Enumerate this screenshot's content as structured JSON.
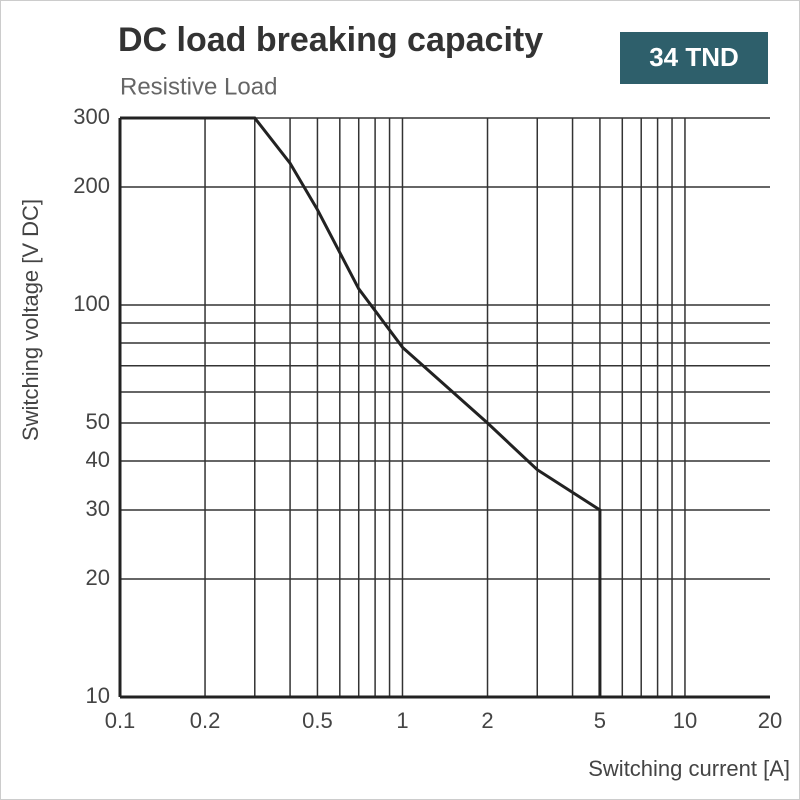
{
  "chart_data": {
    "type": "line",
    "title": "DC load breaking capacity",
    "subtitle": "Resistive Load",
    "badge": "34 TND",
    "x_label": "Switching current [A]",
    "y_label": "Switching voltage [V DC]",
    "log_x": true,
    "log_y": true,
    "grid": true,
    "xlim": [
      0.1,
      20
    ],
    "ylim": [
      10,
      300
    ],
    "xticks": [
      0.1,
      0.2,
      0.5,
      1,
      2,
      5,
      10,
      20
    ],
    "yticks": [
      10,
      20,
      30,
      40,
      50,
      100,
      200,
      300
    ],
    "xgrid": [
      0.1,
      0.2,
      0.3,
      0.4,
      0.5,
      0.6,
      0.7,
      0.8,
      0.9,
      1,
      2,
      3,
      4,
      5,
      6,
      7,
      8,
      9,
      10
    ],
    "ygrid": [
      10,
      20,
      30,
      40,
      50,
      60,
      70,
      80,
      90,
      100,
      200,
      300
    ],
    "series": [
      {
        "color": "#222222",
        "x": [
          0.1,
          0.3,
          0.4,
          0.5,
          0.7,
          1,
          2,
          3,
          5,
          5
        ],
        "values": [
          300,
          300,
          230,
          175,
          110,
          78,
          50,
          38,
          30,
          10
        ]
      }
    ]
  }
}
